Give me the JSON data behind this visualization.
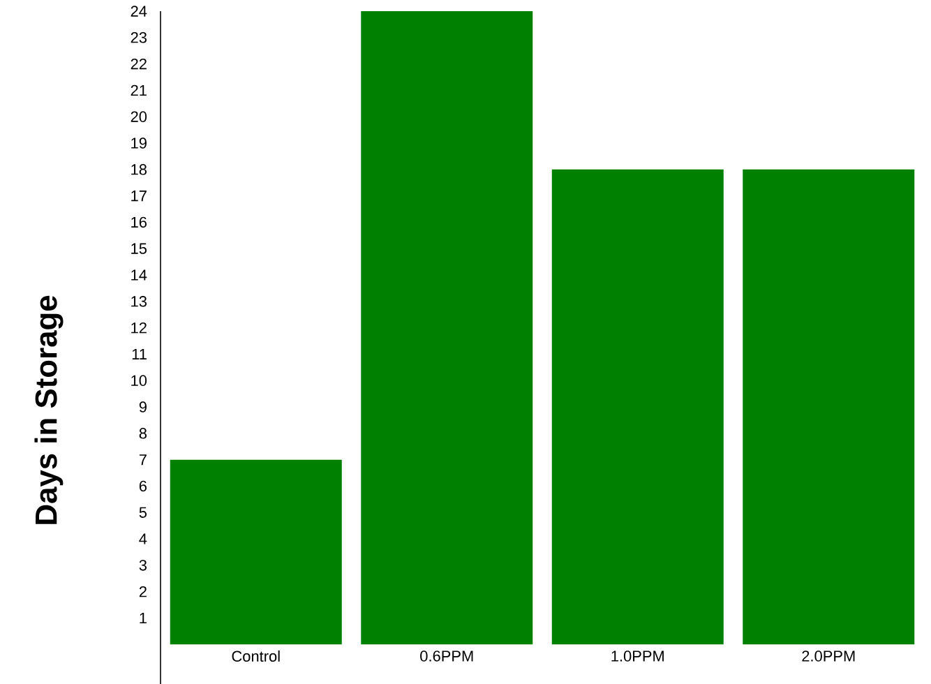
{
  "chart_data": {
    "type": "bar",
    "ylabel": "Days in Storage",
    "categories": [
      "Control",
      "0.6PPM",
      "1.0PPM",
      "2.0PPM"
    ],
    "values": [
      7,
      24,
      18,
      18
    ],
    "color": "#008000",
    "ylim": [
      -1.5,
      24
    ],
    "yticks": [
      1,
      2,
      3,
      4,
      5,
      6,
      7,
      8,
      9,
      10,
      11,
      12,
      13,
      14,
      15,
      16,
      17,
      18,
      19,
      20,
      21,
      22,
      23,
      24
    ],
    "grid": false
  }
}
